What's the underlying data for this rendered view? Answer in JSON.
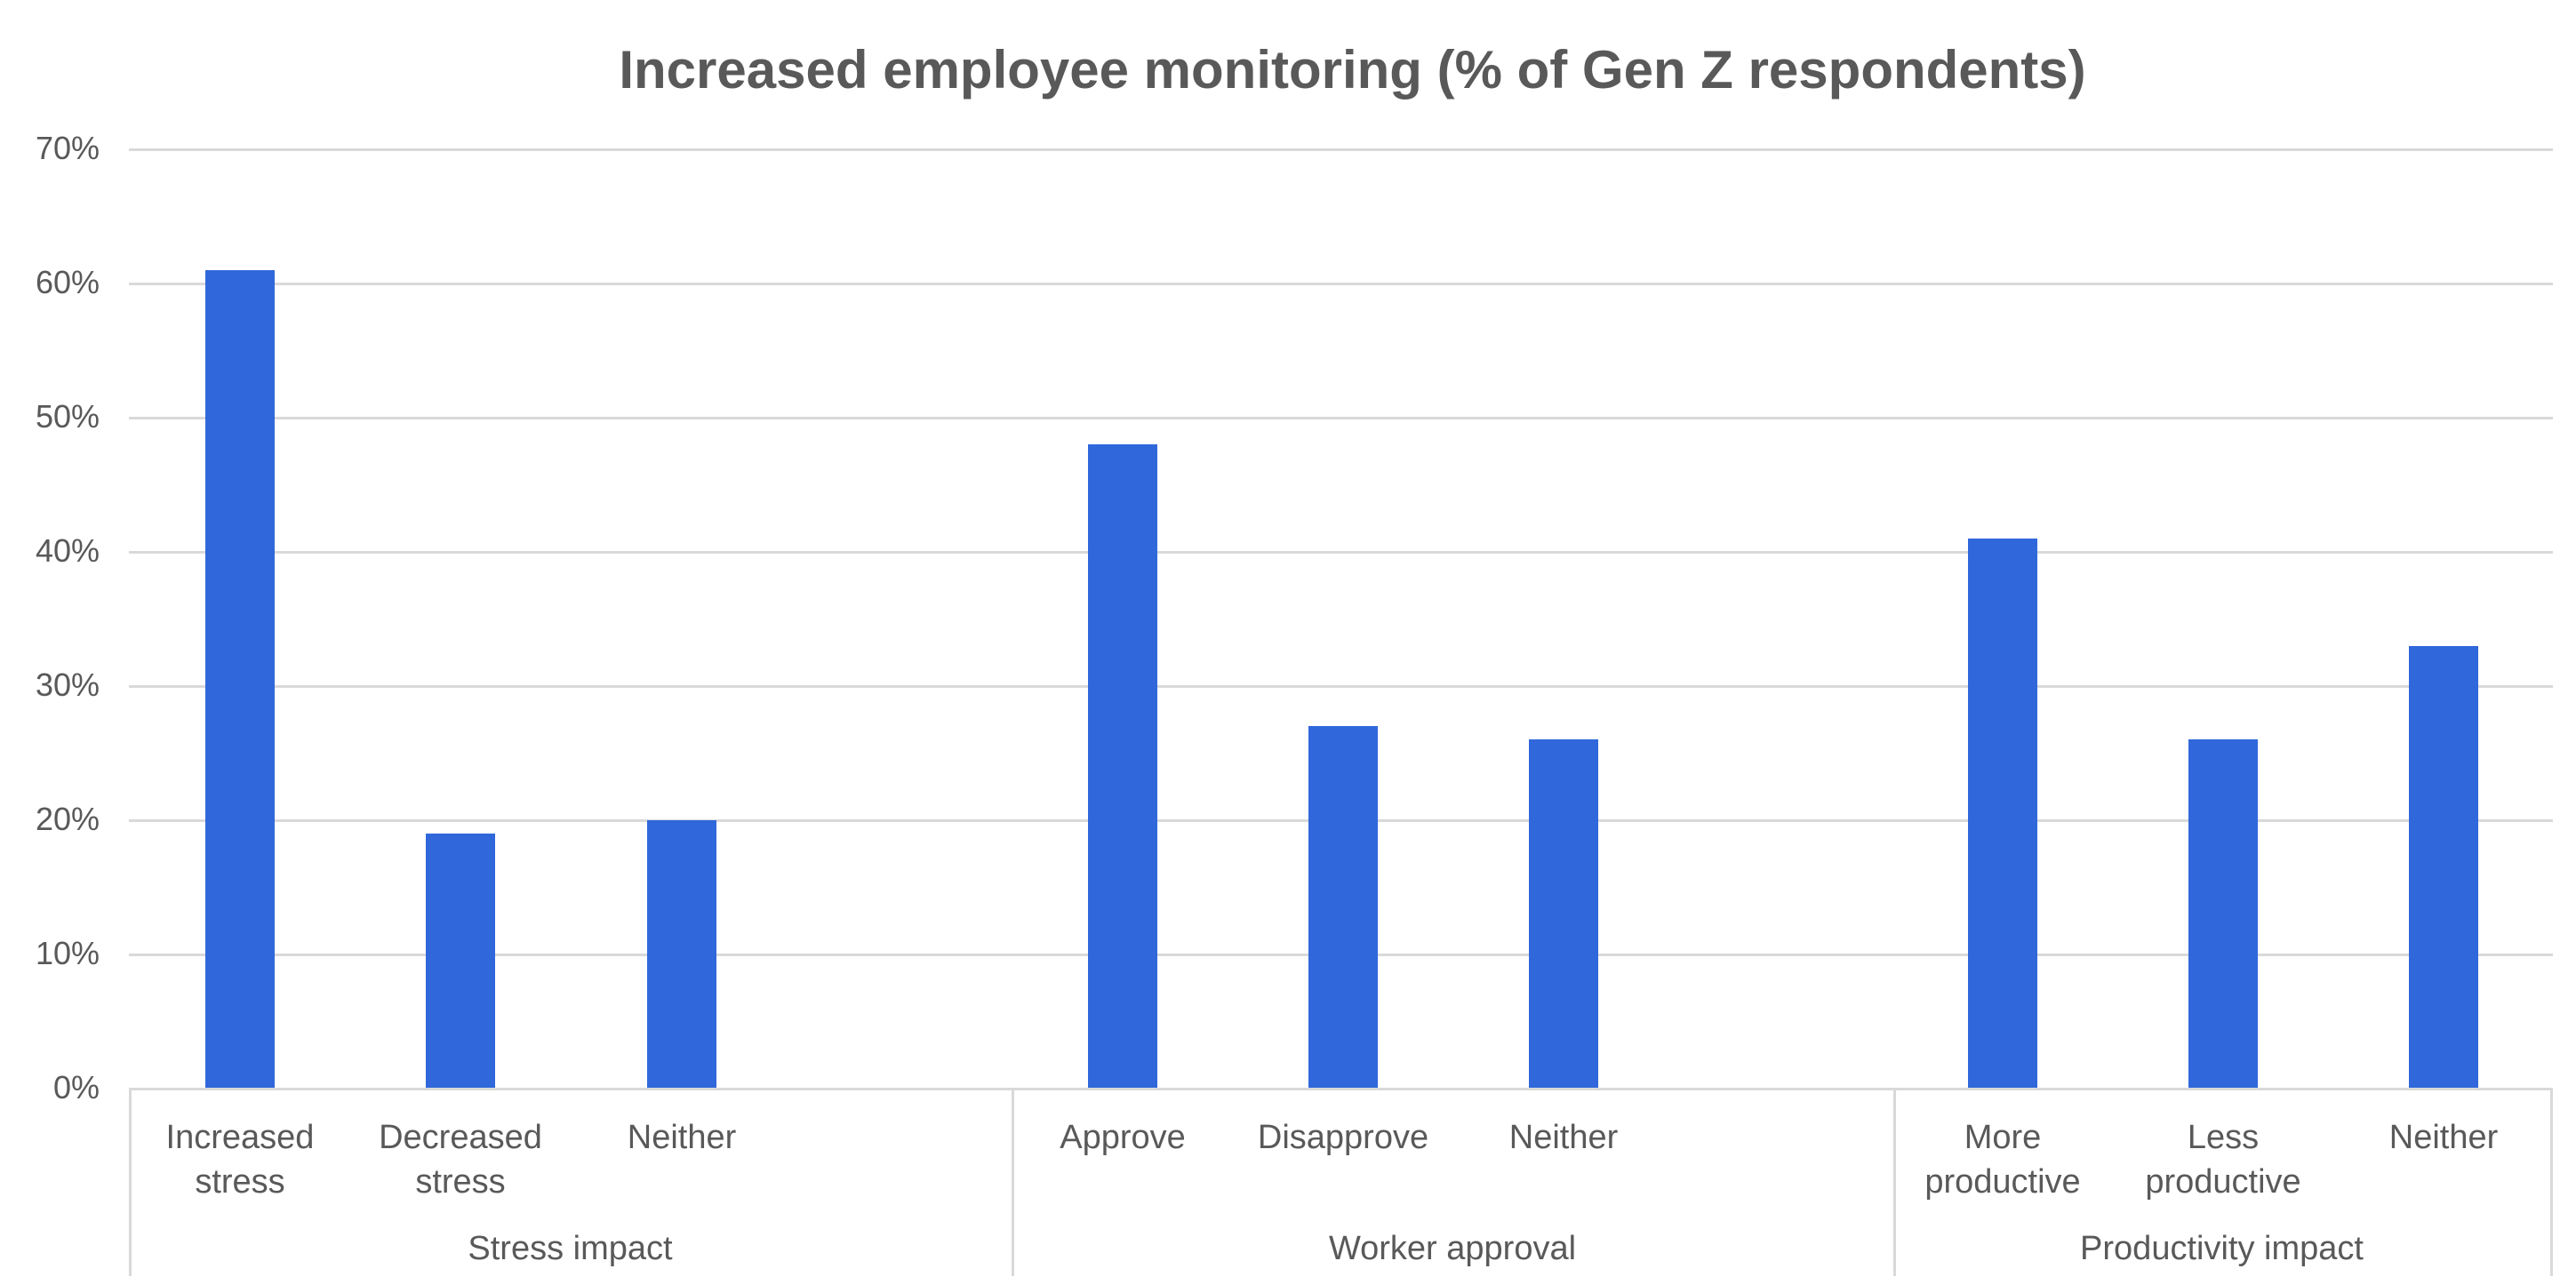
{
  "chart_data": {
    "type": "bar",
    "title": "Increased employee monitoring (% of Gen Z respondents)",
    "xlabel": "",
    "ylabel": "",
    "ylim": [
      0,
      70
    ],
    "yticks": [
      "0%",
      "10%",
      "20%",
      "30%",
      "40%",
      "50%",
      "60%",
      "70%"
    ],
    "grid": true,
    "legend": null,
    "bar_color": "#3068db",
    "groups": [
      {
        "name": "Stress impact",
        "categories": [
          "Increased stress",
          "Decreased stress",
          "Neither"
        ],
        "values": [
          61,
          19,
          20
        ]
      },
      {
        "name": "Worker approval",
        "categories": [
          "Approve",
          "Disapprove",
          "Neither"
        ],
        "values": [
          48,
          27,
          26
        ]
      },
      {
        "name": "Productivity impact",
        "categories": [
          "More productive",
          "Less productive",
          "Neither"
        ],
        "values": [
          41,
          26,
          33
        ]
      }
    ],
    "categories": [
      "Increased stress",
      "Decreased stress",
      "Neither",
      "Approve",
      "Disapprove",
      "Neither",
      "More productive",
      "Less productive",
      "Neither"
    ],
    "values": [
      61,
      19,
      20,
      48,
      27,
      26,
      41,
      26,
      33
    ]
  },
  "labels": {
    "cat": [
      [
        "Increased",
        "stress"
      ],
      [
        "Decreased",
        "stress"
      ],
      [
        "Neither",
        ""
      ],
      [
        "Approve",
        ""
      ],
      [
        "Disapprove",
        ""
      ],
      [
        "Neither",
        ""
      ],
      [
        "More",
        "productive"
      ],
      [
        "Less",
        "productive"
      ],
      [
        "Neither",
        ""
      ]
    ]
  }
}
